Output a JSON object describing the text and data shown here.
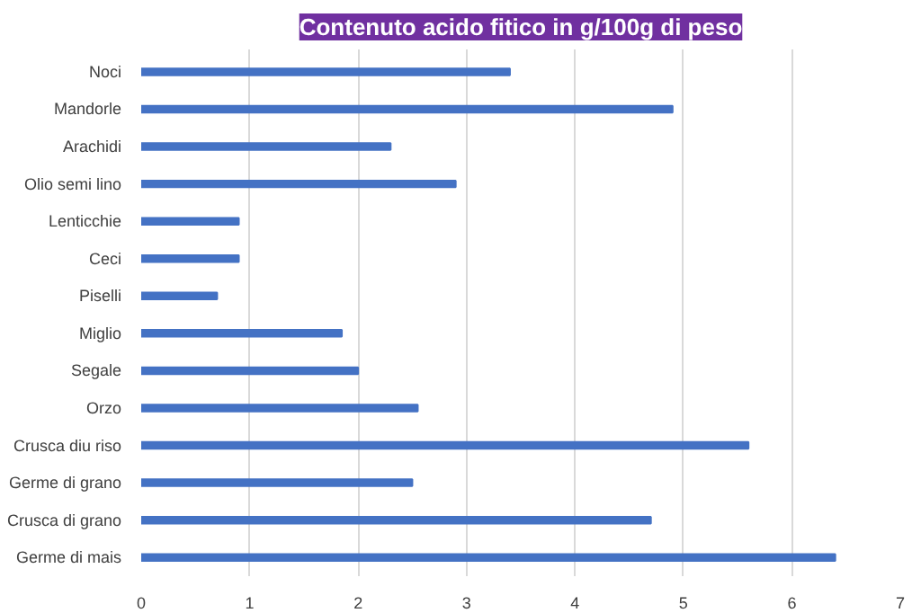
{
  "chart_data": {
    "type": "bar",
    "orientation": "horizontal",
    "title": "Contenuto acido fitico in g/100g di peso",
    "categories": [
      "Noci",
      "Mandorle",
      "Arachidi",
      "Olio semi lino",
      "Lenticchie",
      "Ceci",
      "Piselli",
      "Miglio",
      "Segale",
      "Orzo",
      "Crusca diu riso",
      "Germe di grano",
      "Crusca di grano",
      "Germe di mais"
    ],
    "values": [
      3.4,
      4.9,
      2.3,
      2.9,
      0.9,
      0.9,
      0.7,
      1.85,
      2.0,
      2.55,
      5.6,
      2.5,
      4.7,
      6.4
    ],
    "color": "#4472c4",
    "xlim": [
      0,
      7
    ],
    "xticks": [
      0,
      1,
      2,
      3,
      4,
      5,
      6,
      7
    ],
    "grid": "x"
  }
}
